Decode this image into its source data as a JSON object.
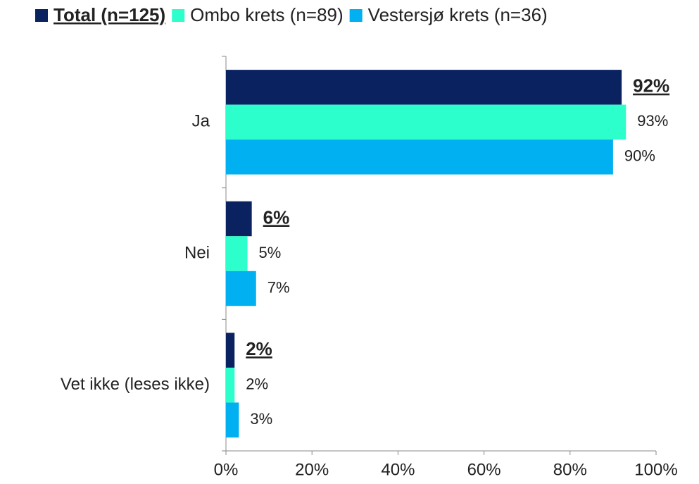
{
  "chart_data": {
    "type": "hbar",
    "categories": [
      "Ja",
      "Nei",
      "Vet ikke (leses ikke)"
    ],
    "series": [
      {
        "name": "Total (n=125)",
        "color": "#0b2260",
        "values": [
          92,
          6,
          2
        ],
        "value_labels": [
          "92%",
          "6%",
          "2%"
        ]
      },
      {
        "name": "Ombo krets (n=89)",
        "color": "#2dffcc",
        "values": [
          93,
          5,
          2
        ],
        "value_labels": [
          "93%",
          "5%",
          "2%"
        ]
      },
      {
        "name": "Vestersjø krets (n=36)",
        "color": "#00b0f0",
        "values": [
          90,
          7,
          3
        ],
        "value_labels": [
          "90%",
          "7%",
          "3%"
        ]
      }
    ],
    "xlim": [
      0,
      100
    ],
    "xticks": [
      {
        "value": 0,
        "label": "0%"
      },
      {
        "value": 20,
        "label": "20%"
      },
      {
        "value": 40,
        "label": "40%"
      },
      {
        "value": 60,
        "label": "60%"
      },
      {
        "value": 80,
        "label": "80%"
      },
      {
        "value": 100,
        "label": "100%"
      }
    ],
    "legend": "top"
  }
}
